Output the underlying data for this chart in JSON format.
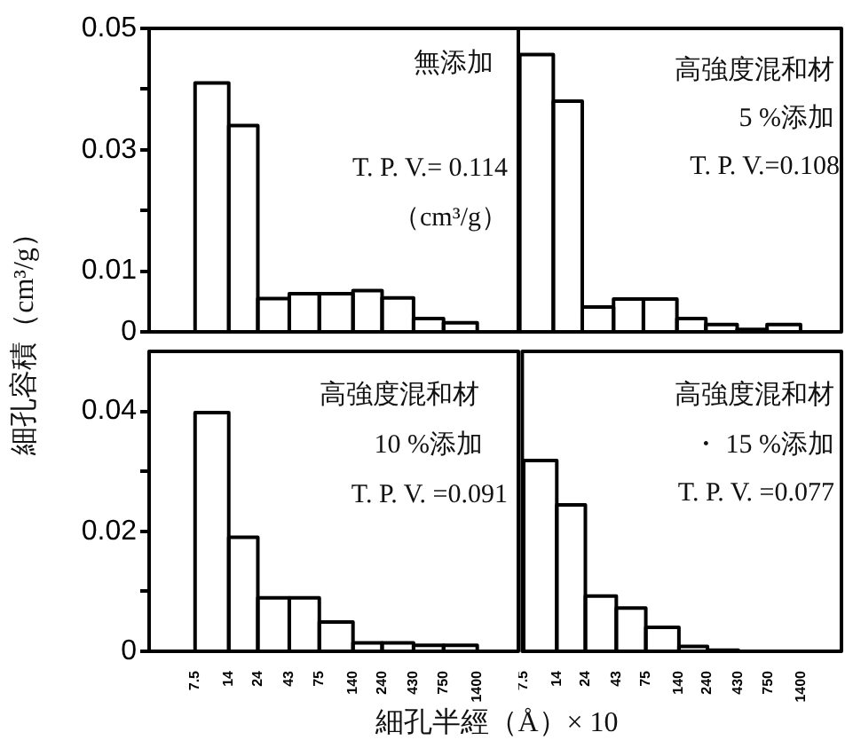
{
  "chart_data": [
    {
      "type": "histogram",
      "log": "x",
      "bins": [
        7.5,
        14,
        24,
        43,
        75,
        140,
        240,
        430,
        750,
        1400
      ],
      "values": [
        0.041,
        0.034,
        0.0055,
        0.0063,
        0.0063,
        0.0068,
        0.0056,
        0.0022,
        0.0015
      ],
      "color": "#000000",
      "xlim": [
        3.2,
        3000
      ],
      "xticks": [
        7.5,
        14,
        24,
        43,
        75,
        140,
        240,
        430,
        750,
        1400
      ],
      "ylim": [
        0,
        0.05
      ],
      "yticks": [
        0,
        0.01,
        {
          "value": 0.02,
          "label": null
        },
        0.03,
        {
          "value": 0.04,
          "label": null
        },
        0.05
      ],
      "tick_labels": "y",
      "ylabel": "細孔容積（cm³/g）",
      "annotations": [
        "無添加",
        "T. P. V.= 0.114",
        "（cm³/g）"
      ]
    },
    {
      "type": "histogram",
      "log": "x",
      "bins": [
        7.5,
        14,
        24,
        43,
        75,
        140,
        240,
        430,
        750,
        1400
      ],
      "values": [
        0.0457,
        0.038,
        0.0041,
        0.0054,
        0.0054,
        0.0022,
        0.0012,
        0.0004,
        0.0012
      ],
      "color": "#000000",
      "xlim": [
        7.3,
        3000
      ],
      "xticks": [
        7.5,
        14,
        24,
        43,
        75,
        140,
        240,
        430,
        750,
        1400
      ],
      "ylim": [
        0,
        0.05
      ],
      "tick_labels": false,
      "annotations": [
        "高強度混和材",
        "5 %添加",
        "T. P. V.=0.108"
      ]
    },
    {
      "type": "histogram",
      "log": "x",
      "bins": [
        7.5,
        14,
        24,
        43,
        75,
        140,
        240,
        430,
        750,
        1400
      ],
      "values": [
        0.0398,
        0.019,
        0.0089,
        0.0089,
        0.0049,
        0.0014,
        0.0014,
        0.001,
        0.001
      ],
      "color": "#000000",
      "xlim": [
        3.2,
        3000
      ],
      "xticks": [
        7.5,
        14,
        24,
        43,
        75,
        140,
        240,
        430,
        750,
        1400
      ],
      "ylim": [
        0,
        0.05
      ],
      "yticks": [
        0,
        {
          "value": 0.01,
          "label": null
        },
        0.02,
        {
          "value": 0.03,
          "label": null
        },
        0.04
      ],
      "xlabel": "細孔半經（Å）× 10",
      "annotations": [
        "高強度混和材",
        "10 %添加",
        "T. P. V. =0.091"
      ]
    },
    {
      "type": "histogram",
      "log": "x",
      "bins": [
        7.5,
        14,
        24,
        43,
        75,
        140,
        240,
        430,
        750,
        1400
      ],
      "values": [
        0.0318,
        0.0244,
        0.0092,
        0.0072,
        0.004,
        0.0008,
        0.0002,
        0,
        0
      ],
      "color": "#000000",
      "xlim": [
        7.3,
        3000
      ],
      "xticks": [
        7.5,
        14,
        24,
        43,
        75,
        140,
        240,
        430,
        750,
        1400
      ],
      "ylim": [
        0,
        0.05
      ],
      "tick_labels": "x",
      "annotations": [
        "高強度混和材",
        "・ 15 %添加",
        "T. P. V. =0.077"
      ]
    }
  ]
}
